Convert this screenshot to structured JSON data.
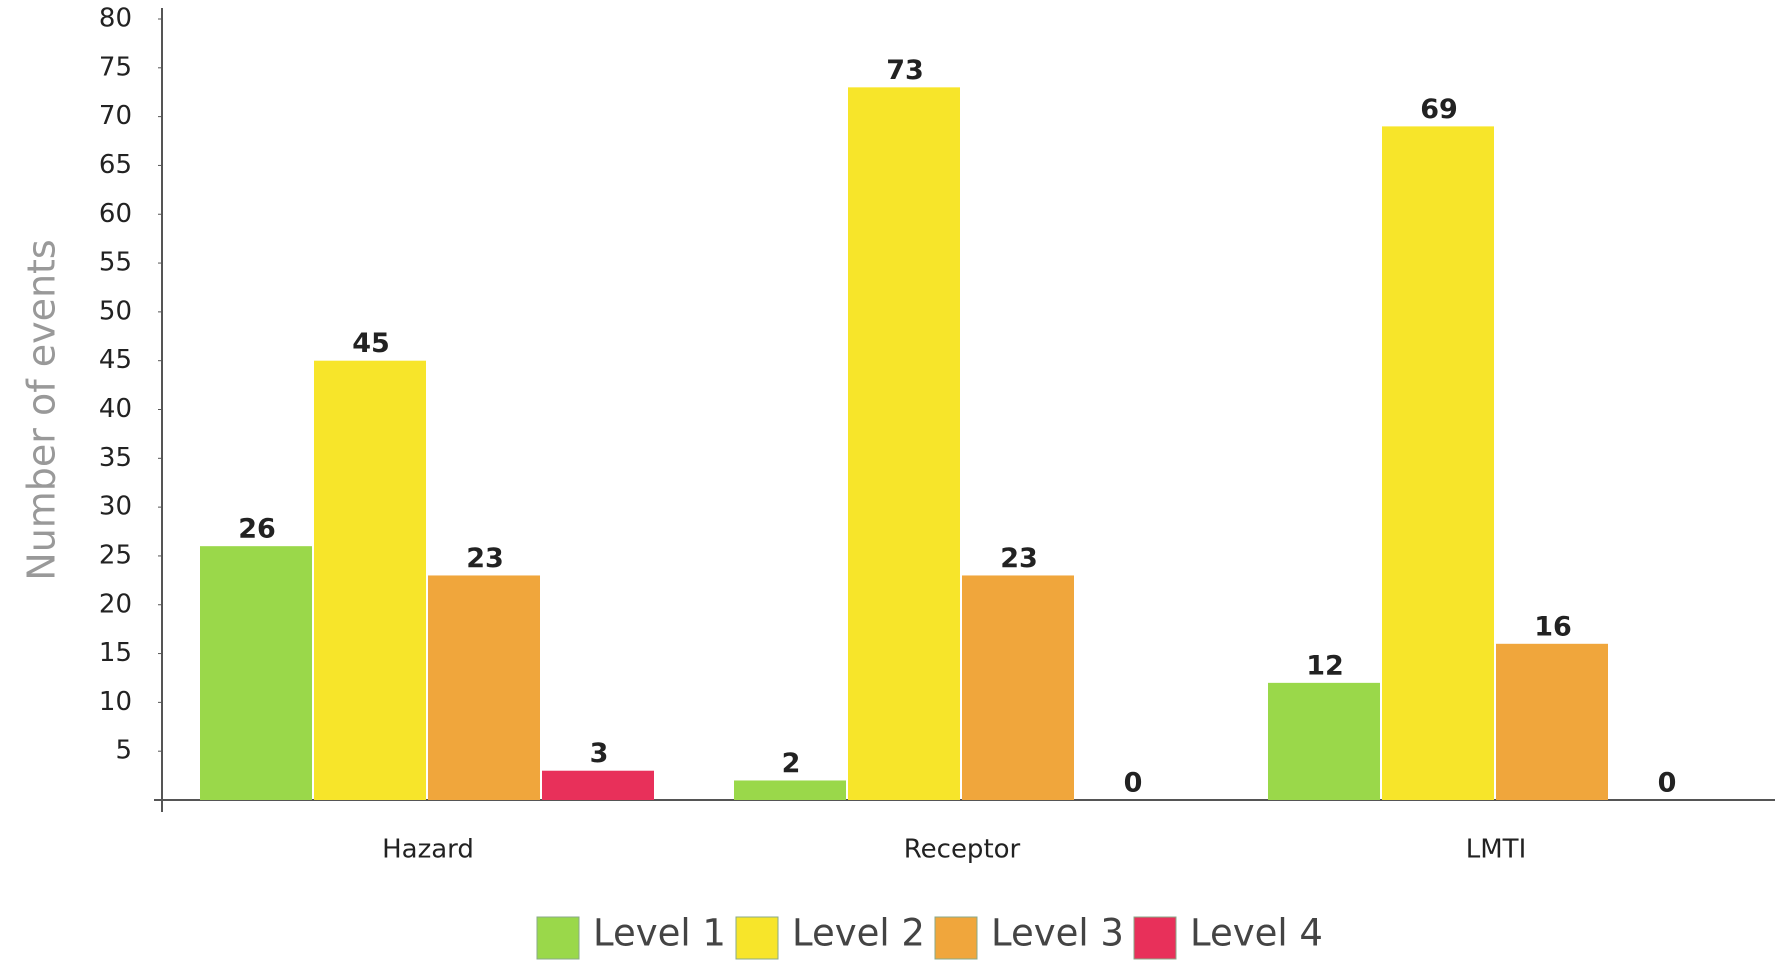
{
  "chart_data": {
    "type": "bar",
    "y_label": "Number of events",
    "categories": [
      "Hazard",
      "Receptor",
      "LMTI"
    ],
    "series": [
      {
        "name": "Level 1",
        "color": "#9ad84a",
        "values": [
          26,
          2,
          12
        ]
      },
      {
        "name": "Level 2",
        "color": "#f7e52a",
        "values": [
          45,
          73,
          69
        ]
      },
      {
        "name": "Level 3",
        "color": "#f0a63c",
        "values": [
          23,
          23,
          16
        ]
      },
      {
        "name": "Level 4",
        "color": "#e8305a",
        "values": [
          3,
          0,
          0
        ]
      }
    ],
    "ylim": [
      0,
      80
    ],
    "yticks": [
      5,
      10,
      15,
      20,
      25,
      30,
      35,
      40,
      45,
      50,
      55,
      60,
      65,
      70,
      75,
      80
    ],
    "legend": "bottom"
  }
}
